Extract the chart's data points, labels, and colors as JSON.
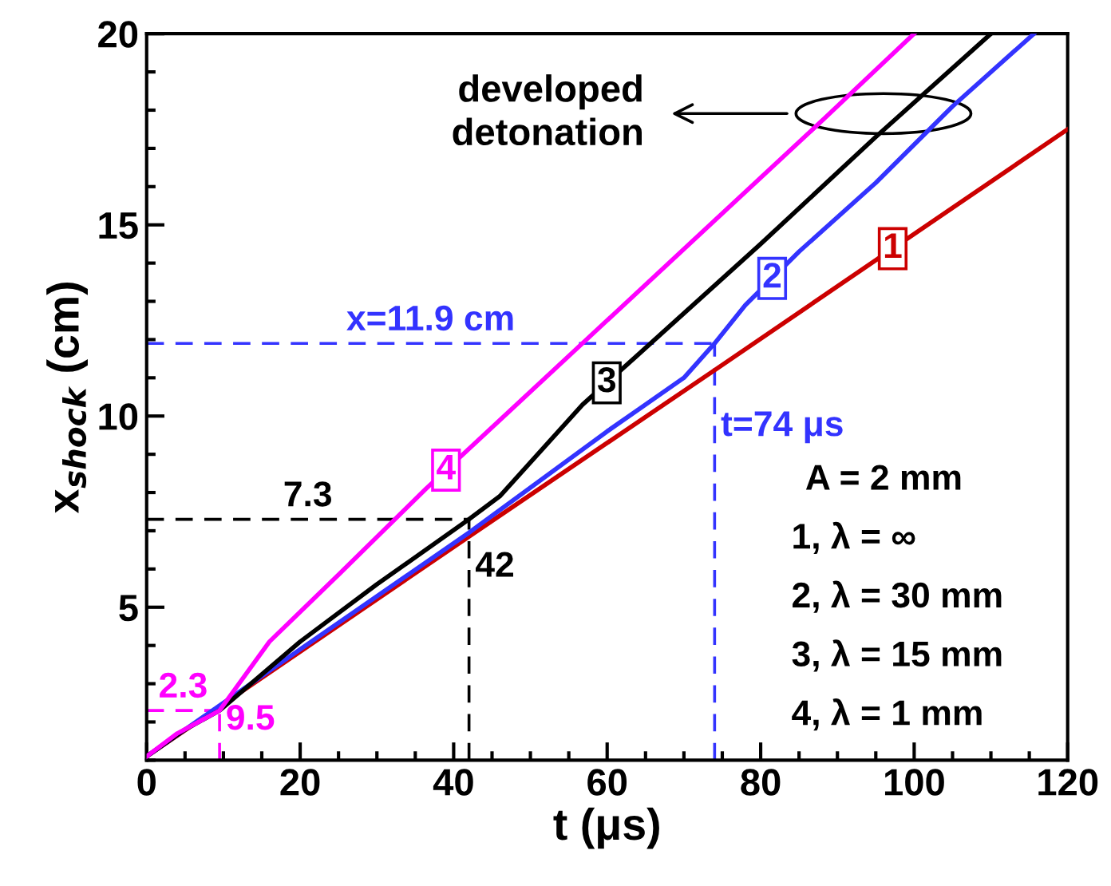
{
  "chart_data": {
    "type": "line",
    "xlabel": "t (μs)",
    "ylabel": "x$_{shock}$ (cm)",
    "xlim": [
      0,
      120
    ],
    "xticks": [
      0,
      20,
      40,
      60,
      80,
      100,
      120
    ],
    "ylim": [
      1,
      20
    ],
    "yticks": [
      5,
      10,
      15,
      20
    ],
    "grid": false,
    "legend": false,
    "marker": "none",
    "line_style": "solid",
    "series": [
      {
        "name": "1",
        "color": "#cc0000",
        "x": [
          0,
          42,
          74,
          120
        ],
        "values": [
          1.1,
          6.85,
          11.2,
          17.5
        ]
      },
      {
        "name": "2",
        "color": "#3333ff",
        "x": [
          0,
          20,
          42,
          60,
          70,
          74,
          78,
          85,
          95,
          105,
          115.6
        ],
        "values": [
          1.1,
          3.9,
          6.95,
          9.6,
          11.0,
          11.9,
          12.9,
          14.3,
          16.1,
          18.1,
          20
        ]
      },
      {
        "name": "3",
        "color": "#000000",
        "x": [
          0,
          5,
          9.5,
          20,
          30,
          42,
          46,
          56.8,
          64,
          80,
          95,
          110
        ],
        "values": [
          1.1,
          1.8,
          2.3,
          4.1,
          5.6,
          7.3,
          7.9,
          10.3,
          11.6,
          14.5,
          17.3,
          20
        ]
      },
      {
        "name": "4",
        "color": "#ff00ff",
        "x": [
          0,
          4,
          9.5,
          16,
          25,
          36.4,
          55.7,
          88.4,
          100
        ],
        "values": [
          1.1,
          1.7,
          2.3,
          4.1,
          5.85,
          8.1,
          11.7,
          17.8,
          20
        ]
      }
    ],
    "ref_lines": [
      {
        "axis": "y",
        "value": 11.9,
        "label": "x=11.9 cm",
        "color": "#3333ff",
        "line_style": "dashed"
      },
      {
        "axis": "x",
        "value": 74,
        "label": "t=74 μs",
        "color": "#3333ff",
        "line_style": "dashed"
      },
      {
        "axis": "y",
        "value": 7.3,
        "label": "7.3",
        "color": "#000000",
        "line_style": "dashed"
      },
      {
        "axis": "x",
        "value": 42,
        "label": "42",
        "color": "#000000",
        "line_style": "dashed"
      },
      {
        "axis": "y",
        "value": 2.3,
        "label": "2.3",
        "color": "#ff00ff",
        "line_style": "dashed"
      },
      {
        "axis": "x",
        "value": 9.5,
        "label": "9.5",
        "color": "#ff00ff",
        "line_style": "dashed"
      }
    ],
    "annotations": [
      "developed\ndetonation",
      "A = 2 mm",
      "1, λ = ∞",
      "2, λ = 30 mm",
      "3, λ = 15 mm",
      "4, λ = 1 mm"
    ]
  }
}
